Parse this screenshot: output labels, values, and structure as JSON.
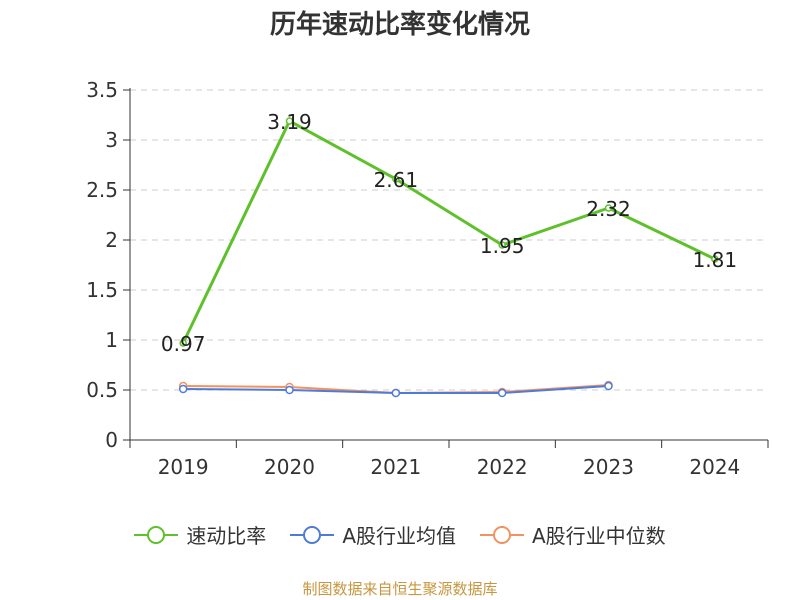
{
  "chart_data": {
    "type": "line",
    "title": "历年速动比率变化情况",
    "categories": [
      "2019",
      "2020",
      "2021",
      "2022",
      "2023",
      "2024"
    ],
    "ylim": [
      0,
      3.5
    ],
    "yticks": [
      "0",
      "0.5",
      "1",
      "1.5",
      "2",
      "2.5",
      "3",
      "3.5"
    ],
    "grid": true,
    "legend_position": "bottom",
    "series": [
      {
        "name": "速动比率",
        "color": "#5ec02b",
        "values": [
          0.97,
          3.19,
          2.61,
          1.95,
          2.32,
          1.81
        ],
        "labels": [
          "0.97",
          "3.19",
          "2.61",
          "1.95",
          "2.32",
          "1.81"
        ],
        "show_labels": true
      },
      {
        "name": "A股行业均值",
        "color": "#4f7bd8",
        "values": [
          0.51,
          0.5,
          0.47,
          0.47,
          0.54,
          null
        ]
      },
      {
        "name": "A股行业中位数",
        "color": "#f29260",
        "values": [
          0.54,
          0.53,
          0.47,
          0.48,
          0.55,
          null
        ]
      }
    ],
    "source": "制图数据来自恒生聚源数据库"
  }
}
